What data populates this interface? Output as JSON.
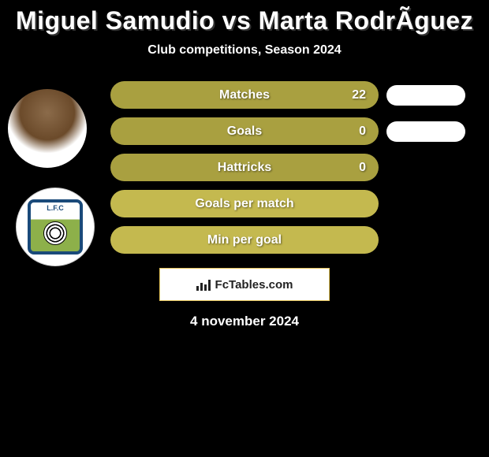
{
  "title": "Miguel Samudio vs Marta RodrÃ­guez",
  "subtitle": "Club competitions, Season 2024",
  "date": "4 november 2024",
  "attribution": "FcTables.com",
  "colors": {
    "background": "#000000",
    "bar_with_value": "#a9a040",
    "bar_empty": "#c4b94f",
    "pill": "#ffffff",
    "text": "#ffffff",
    "attribution_bg": "#ffffff",
    "attribution_border": "#e5c45a"
  },
  "stats": [
    {
      "label": "Matches",
      "value": "22",
      "has_value": true,
      "has_pill": true
    },
    {
      "label": "Goals",
      "value": "0",
      "has_value": true,
      "has_pill": true
    },
    {
      "label": "Hattricks",
      "value": "0",
      "has_value": true,
      "has_pill": false
    },
    {
      "label": "Goals per match",
      "value": "",
      "has_value": false,
      "has_pill": false
    },
    {
      "label": "Min per goal",
      "value": "",
      "has_value": false,
      "has_pill": false
    }
  ],
  "club_logo_text": "L.F.C"
}
